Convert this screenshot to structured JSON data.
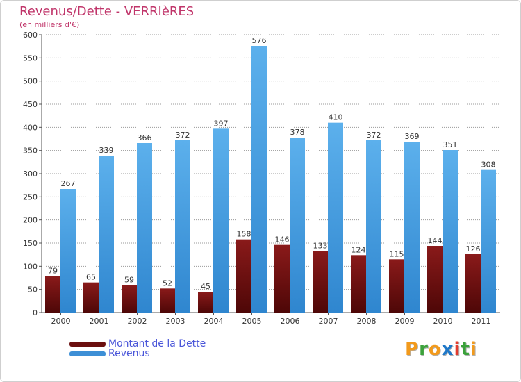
{
  "chart_data": {
    "type": "bar",
    "title": "Revenus/Dette - VERRIèRES",
    "subtitle": "(en milliers d'€)",
    "xlabel": "",
    "ylabel": "",
    "ylim": [
      0,
      600
    ],
    "yticks": [
      0,
      50,
      100,
      150,
      200,
      250,
      300,
      350,
      400,
      450,
      500,
      550,
      600
    ],
    "grid": true,
    "categories": [
      "2000",
      "2001",
      "2002",
      "2003",
      "2004",
      "2005",
      "2006",
      "2007",
      "2008",
      "2009",
      "2010",
      "2011"
    ],
    "series": [
      {
        "name": "Montant de la Dette",
        "color": "#7a1414",
        "values": [
          79,
          65,
          59,
          52,
          45,
          158,
          146,
          133,
          124,
          115,
          144,
          126
        ]
      },
      {
        "name": "Revenus",
        "color": "#4aa0e0",
        "values": [
          267,
          339,
          366,
          372,
          397,
          576,
          378,
          410,
          372,
          369,
          351,
          308
        ]
      }
    ],
    "legend_position": "bottom-left"
  },
  "legend": {
    "items": [
      {
        "label": "Montant de la Dette",
        "color": "#6b0f0f"
      },
      {
        "label": "Revenus",
        "color": "#3d8fd6"
      }
    ]
  },
  "brand": {
    "letters": [
      "P",
      "r",
      "o",
      "x",
      "i",
      "t",
      "i"
    ],
    "colors": [
      "#f29a1c",
      "#3ba23b",
      "#f29a1c",
      "#1f78c8",
      "#e23b2e",
      "#3ba23b",
      "#f29a1c"
    ]
  }
}
